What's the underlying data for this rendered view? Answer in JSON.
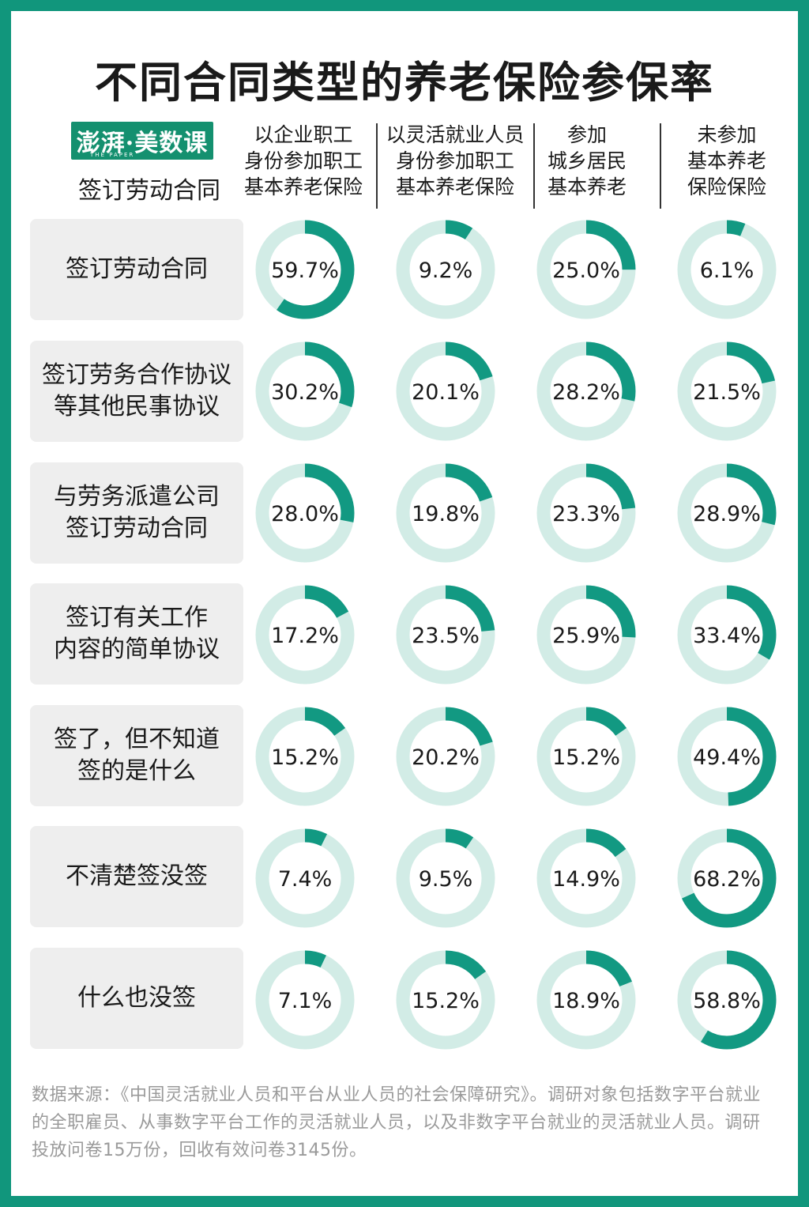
{
  "title": "不同合同类型的养老保险参保率",
  "logo": {
    "text": "澎湃·美数课",
    "subtext": "THE PAPER"
  },
  "corner_label": "签订劳动合同",
  "source": "数据来源：《中国灵活就业人员和平台从业人员的社会保障研究》。调研对象包括数字平台就业的全职雇员、从事数字平台工作的灵活就业人员，以及非数字平台就业的灵活就业人员。调研投放问卷15万份，回收有效问卷3145份。",
  "colors": {
    "accent": "#129982",
    "track": "#d2ece6",
    "border": "#11967c"
  },
  "chart_data": {
    "type": "donut-grid",
    "title": "不同合同类型的养老保险参保率",
    "columns": [
      "以企业职工\n身份参加职工\n基本养老保险",
      "以灵活就业人员\n身份参加职工\n基本养老保险",
      "参加\n城乡居民\n基本养老",
      "未参加\n基本养老\n保险保险"
    ],
    "rows": [
      "签订劳动合同",
      "签订劳务合作协议\n等其他民事协议",
      "与劳务派遣公司\n签订劳动合同",
      "签订有关工作\n内容的简单协议",
      "签了，但不知道\n签的是什么",
      "不清楚签没签",
      "什么也没签"
    ],
    "values": [
      [
        59.7,
        9.2,
        25.0,
        6.1
      ],
      [
        30.2,
        20.1,
        28.2,
        21.5
      ],
      [
        28.0,
        19.8,
        23.3,
        28.9
      ],
      [
        17.2,
        23.5,
        25.9,
        33.4
      ],
      [
        15.2,
        20.2,
        15.2,
        49.4
      ],
      [
        7.4,
        9.5,
        14.9,
        68.2
      ],
      [
        7.1,
        15.2,
        18.9,
        58.8
      ]
    ],
    "unit": "%"
  }
}
